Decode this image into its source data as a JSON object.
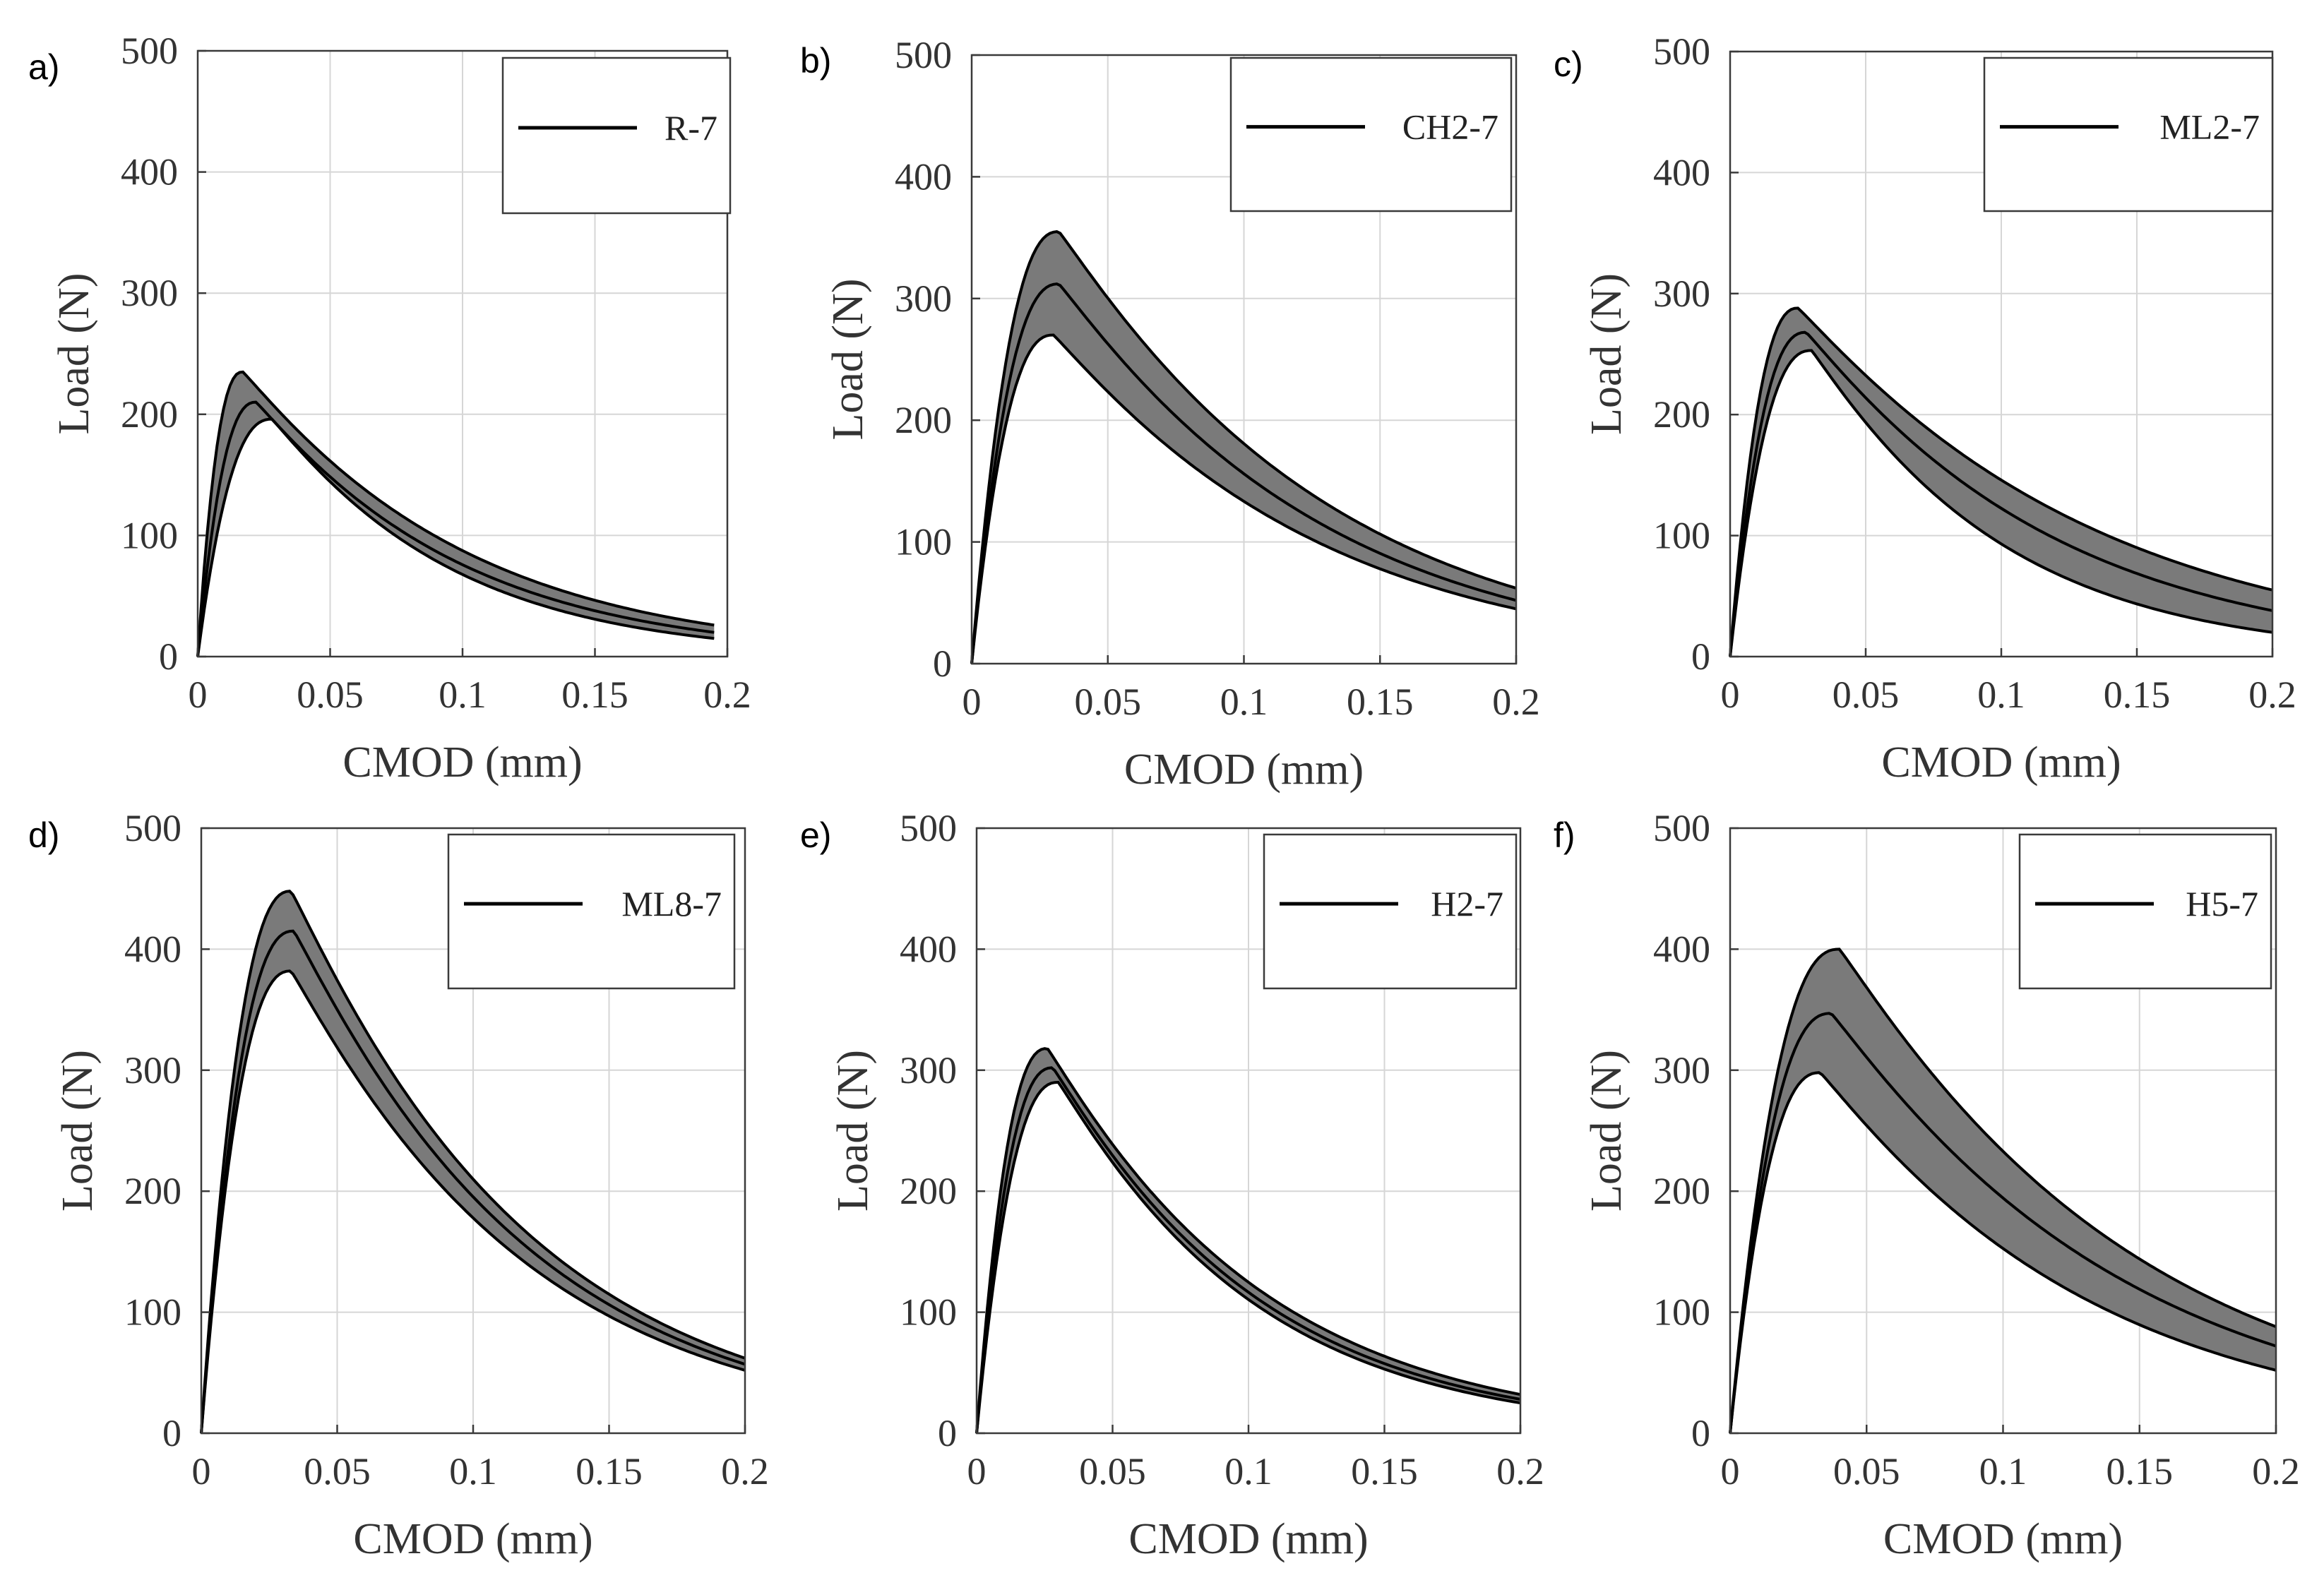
{
  "colors": {
    "band_fill": "#7a7a7a",
    "line": "#000000",
    "grid": "#d6d6d6",
    "axes": "#3a3a3a"
  },
  "chart_data": [
    {
      "panel": "a)",
      "type": "line",
      "legend": "R-7",
      "legend_position": "top-right",
      "xlabel": "CMOD (mm)",
      "ylabel": "Load (N)",
      "xlim": [
        0,
        0.2
      ],
      "ylim": [
        0,
        500
      ],
      "xticks": [
        "0",
        "0.05",
        "0.1",
        "0.15",
        "0.2"
      ],
      "yticks": [
        "0",
        "100",
        "200",
        "300",
        "400",
        "500"
      ],
      "grid": true,
      "x_end": 0.195,
      "mean": {
        "peak_x": 0.022,
        "peak_y": 210,
        "end_y": 20
      },
      "upper": {
        "peak_x": 0.017,
        "peak_y": 235,
        "end_y": 26
      },
      "lower": {
        "peak_x": 0.028,
        "peak_y": 196,
        "end_y": 15
      }
    },
    {
      "panel": "b)",
      "type": "line",
      "legend": "CH2-7",
      "legend_position": "top-right",
      "xlabel": "CMOD (mm)",
      "ylabel": "Load (N)",
      "xlim": [
        0,
        0.2
      ],
      "ylim": [
        0,
        500
      ],
      "xticks": [
        "0",
        "0.05",
        "0.1",
        "0.15",
        "0.2"
      ],
      "yticks": [
        "0",
        "100",
        "200",
        "300",
        "400",
        "500"
      ],
      "grid": true,
      "x_end": 0.2,
      "mean": {
        "peak_x": 0.032,
        "peak_y": 312,
        "end_y": 52
      },
      "upper": {
        "peak_x": 0.032,
        "peak_y": 355,
        "end_y": 62
      },
      "lower": {
        "peak_x": 0.03,
        "peak_y": 270,
        "end_y": 45
      }
    },
    {
      "panel": "c)",
      "type": "line",
      "legend": "ML2-7",
      "legend_position": "top-right",
      "xlabel": "CMOD (mm)",
      "ylabel": "Load (N)",
      "xlim": [
        0,
        0.2
      ],
      "ylim": [
        0,
        500
      ],
      "xticks": [
        "0",
        "0.05",
        "0.1",
        "0.15",
        "0.2"
      ],
      "yticks": [
        "0",
        "100",
        "200",
        "300",
        "400",
        "500"
      ],
      "grid": true,
      "x_end": 0.2,
      "mean": {
        "peak_x": 0.028,
        "peak_y": 268,
        "end_y": 38
      },
      "upper": {
        "peak_x": 0.025,
        "peak_y": 288,
        "end_y": 55
      },
      "lower": {
        "peak_x": 0.03,
        "peak_y": 253,
        "end_y": 20
      }
    },
    {
      "panel": "d)",
      "type": "line",
      "legend": "ML8-7",
      "legend_position": "top-right",
      "xlabel": "CMOD (mm)",
      "ylabel": "Load (N)",
      "xlim": [
        0,
        0.2
      ],
      "ylim": [
        0,
        500
      ],
      "xticks": [
        "0",
        "0.05",
        "0.1",
        "0.15",
        "0.2"
      ],
      "yticks": [
        "0",
        "100",
        "200",
        "300",
        "400",
        "500"
      ],
      "grid": true,
      "x_end": 0.2,
      "mean": {
        "peak_x": 0.034,
        "peak_y": 415,
        "end_y": 57
      },
      "upper": {
        "peak_x": 0.033,
        "peak_y": 448,
        "end_y": 62
      },
      "lower": {
        "peak_x": 0.033,
        "peak_y": 382,
        "end_y": 52
      }
    },
    {
      "panel": "e)",
      "type": "line",
      "legend": "H2-7",
      "legend_position": "top-right",
      "xlabel": "CMOD (mm)",
      "ylabel": "Load (N)",
      "xlim": [
        0,
        0.2
      ],
      "ylim": [
        0,
        500
      ],
      "xticks": [
        "0",
        "0.05",
        "0.1",
        "0.15",
        "0.2"
      ],
      "yticks": [
        "0",
        "100",
        "200",
        "300",
        "400",
        "500"
      ],
      "grid": true,
      "x_end": 0.2,
      "mean": {
        "peak_x": 0.028,
        "peak_y": 302,
        "end_y": 28
      },
      "upper": {
        "peak_x": 0.026,
        "peak_y": 318,
        "end_y": 32
      },
      "lower": {
        "peak_x": 0.03,
        "peak_y": 290,
        "end_y": 25
      }
    },
    {
      "panel": "f)",
      "type": "line",
      "legend": "H5-7",
      "legend_position": "top-right",
      "xlabel": "CMOD (mm)",
      "ylabel": "Load (N)",
      "xlim": [
        0,
        0.2
      ],
      "ylim": [
        0,
        500
      ],
      "xticks": [
        "0",
        "0.05",
        "0.1",
        "0.15",
        "0.2"
      ],
      "yticks": [
        "0",
        "100",
        "200",
        "300",
        "400",
        "500"
      ],
      "grid": true,
      "x_end": 0.2,
      "mean": {
        "peak_x": 0.037,
        "peak_y": 347,
        "end_y": 72
      },
      "upper": {
        "peak_x": 0.04,
        "peak_y": 400,
        "end_y": 88
      },
      "lower": {
        "peak_x": 0.033,
        "peak_y": 298,
        "end_y": 52
      }
    }
  ]
}
